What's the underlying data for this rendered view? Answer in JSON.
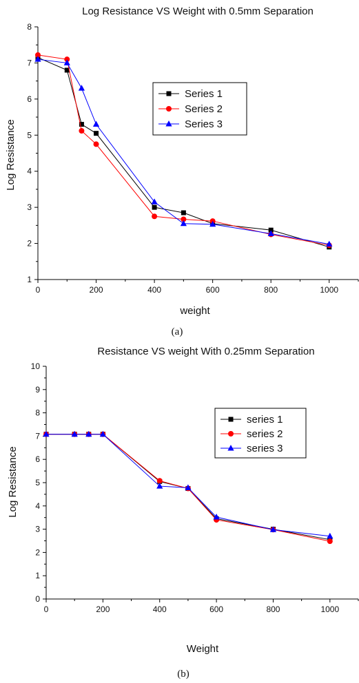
{
  "chart_data": [
    {
      "type": "line",
      "title": "Log Resistance VS Weight with 0.5mm Separation",
      "xlabel": "weight",
      "ylabel": "Log Resistance",
      "caption": "(a)",
      "xlim": [
        0,
        1100
      ],
      "ylim": [
        1,
        8
      ],
      "xticks": [
        0,
        200,
        400,
        600,
        800,
        1000
      ],
      "yticks": [
        1,
        2,
        3,
        4,
        5,
        6,
        7,
        8
      ],
      "grid": false,
      "legend_position": "upper-right",
      "series": [
        {
          "name": "Series 1",
          "color": "#000000",
          "marker": "square",
          "x": [
            0,
            100,
            150,
            200,
            400,
            500,
            600,
            800,
            1000
          ],
          "y": [
            7.15,
            6.8,
            5.3,
            5.05,
            3.0,
            2.85,
            2.55,
            2.37,
            1.9
          ]
        },
        {
          "name": "Series 2",
          "color": "#ff0000",
          "marker": "circle",
          "x": [
            0,
            100,
            150,
            200,
            400,
            500,
            600,
            800,
            1000
          ],
          "y": [
            7.22,
            7.1,
            5.12,
            4.75,
            2.75,
            2.67,
            2.62,
            2.25,
            1.95
          ]
        },
        {
          "name": "Series 3",
          "color": "#0000ff",
          "marker": "triangle",
          "x": [
            0,
            100,
            150,
            200,
            400,
            500,
            600,
            800,
            1000
          ],
          "y": [
            7.1,
            7.0,
            6.3,
            5.3,
            3.15,
            2.55,
            2.53,
            2.27,
            1.98
          ]
        }
      ]
    },
    {
      "type": "line",
      "title": "Resistance VS weight With 0.25mm Separation",
      "xlabel": "Weight",
      "ylabel": "Log Resistance",
      "caption": "(b)",
      "xlim": [
        0,
        1100
      ],
      "ylim": [
        0,
        10
      ],
      "xticks": [
        0,
        200,
        400,
        600,
        800,
        1000
      ],
      "yticks": [
        0,
        1,
        2,
        3,
        4,
        5,
        6,
        7,
        8,
        9,
        10
      ],
      "grid": false,
      "legend_position": "upper-right",
      "series": [
        {
          "name": "series 1",
          "color": "#000000",
          "marker": "square",
          "x": [
            0,
            100,
            150,
            200,
            400,
            500,
            600,
            800,
            1000
          ],
          "y": [
            7.08,
            7.08,
            7.08,
            7.08,
            5.05,
            4.75,
            3.45,
            3.0,
            2.55
          ]
        },
        {
          "name": "series 2",
          "color": "#ff0000",
          "marker": "circle",
          "x": [
            0,
            100,
            150,
            200,
            400,
            500,
            600,
            800,
            1000
          ],
          "y": [
            7.08,
            7.08,
            7.08,
            7.08,
            5.08,
            4.75,
            3.4,
            2.98,
            2.48
          ]
        },
        {
          "name": "series 3",
          "color": "#0000ff",
          "marker": "triangle",
          "x": [
            0,
            100,
            150,
            200,
            400,
            500,
            600,
            800,
            1000
          ],
          "y": [
            7.08,
            7.08,
            7.08,
            7.08,
            4.85,
            4.78,
            3.52,
            2.98,
            2.7
          ]
        }
      ]
    }
  ]
}
